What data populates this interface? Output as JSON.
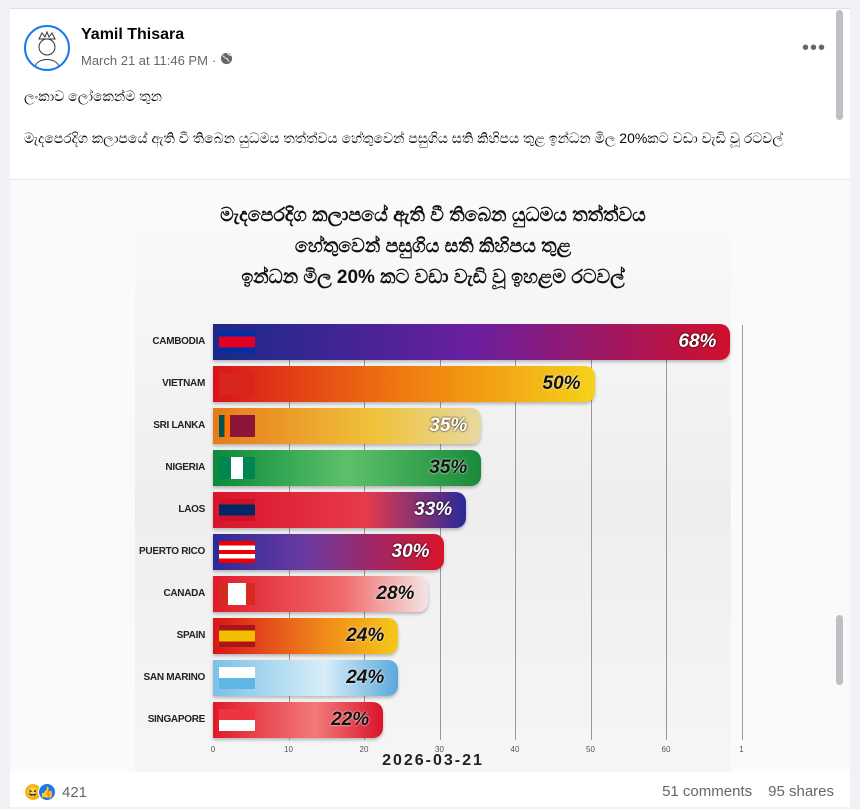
{
  "post": {
    "author": "Yamil Thisara",
    "timestamp": "March 21 at 11:46 PM",
    "separator": "·",
    "audience_icon": "globe-icon",
    "more_label": "•••",
    "text_line1": "ලංකාව ලෝකෙන්ම තුන",
    "text_line2": "මැදපෙරදිග කලාපයේ ඇති වී තිබෙන යුධමය තත්ත්වය හේතුවෙන් පසුගිය සති කිහිපය තුළ ඉන්ධන මිල 20%කට වඩා වැඩි වූ රටවල්"
  },
  "chart_data": {
    "type": "bar",
    "orientation": "horizontal",
    "title_lines": [
      "මැදපෙරදිග කලාපයේ ඇති වී තිබෙන යුධමය තත්ත්වය",
      "හේතුවෙන් පසුගිය සති කිහිපය තුළ",
      "ඉන්ධන මිල 20% කට වඩා වැඩි වූ ඉහළම රටවල්"
    ],
    "categories": [
      "CAMBODIA",
      "VIETNAM",
      "SRI LANKA",
      "NIGERIA",
      "LAOS",
      "PUERTO RICO",
      "CANADA",
      "SPAIN",
      "SAN MARINO",
      "SINGAPORE"
    ],
    "values": [
      68,
      50,
      35,
      35,
      33,
      30,
      28,
      24,
      24,
      22
    ],
    "value_labels": [
      "68%",
      "50%",
      "35%",
      "35%",
      "33%",
      "30%",
      "28%",
      "24%",
      "24%",
      "22%"
    ],
    "xticks": [
      "0",
      "10",
      "20",
      "30",
      "40",
      "50",
      "60",
      "1"
    ],
    "xlim": [
      0,
      70
    ],
    "grid": true,
    "footer_date": "2026-03-21"
  },
  "footer": {
    "reaction_count": "421",
    "comments": "51 comments",
    "shares": "95 shares"
  }
}
